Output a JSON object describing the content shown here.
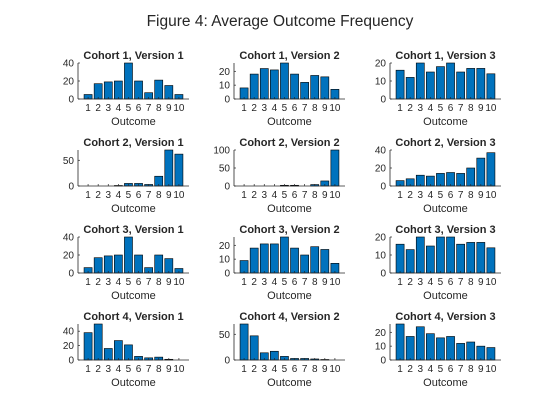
{
  "figure_title": "Figure 4: Average Outcome Frequency",
  "colors": {
    "bar_fill": "#0072BD",
    "bar_edge": "#000000",
    "axis": "#262626",
    "background": "#ffffff"
  },
  "chart_data": [
    {
      "type": "bar",
      "title": "Cohort 1, Version 1",
      "xlabel": "Outcome",
      "ylabel": "",
      "categories": [
        "1",
        "2",
        "3",
        "4",
        "5",
        "6",
        "7",
        "8",
        "9",
        "10"
      ],
      "values": [
        5,
        17,
        19,
        20,
        40,
        20,
        7,
        21,
        15,
        5
      ],
      "ylim": [
        0,
        40
      ],
      "yticks": [
        0,
        20,
        40
      ]
    },
    {
      "type": "bar",
      "title": "Cohort 1, Version 2",
      "xlabel": "Outcome",
      "ylabel": "",
      "categories": [
        "1",
        "2",
        "3",
        "4",
        "5",
        "6",
        "7",
        "8",
        "9",
        "10"
      ],
      "values": [
        8,
        18,
        22,
        21,
        26,
        18,
        12,
        17,
        16,
        7
      ],
      "ylim": [
        0,
        26
      ],
      "yticks": [
        0,
        10,
        20
      ]
    },
    {
      "type": "bar",
      "title": "Cohort 1, Version 3",
      "xlabel": "Outcome",
      "ylabel": "",
      "categories": [
        "1",
        "2",
        "3",
        "4",
        "5",
        "6",
        "7",
        "8",
        "9",
        "10"
      ],
      "values": [
        16,
        12,
        20,
        15,
        18,
        20,
        15,
        17,
        17,
        14
      ],
      "ylim": [
        0,
        20
      ],
      "yticks": [
        0,
        10,
        20
      ]
    },
    {
      "type": "bar",
      "title": "Cohort 2, Version 1",
      "xlabel": "Outcome",
      "ylabel": "",
      "categories": [
        "1",
        "2",
        "3",
        "4",
        "5",
        "6",
        "7",
        "8",
        "9",
        "10"
      ],
      "values": [
        0,
        0,
        0,
        1,
        5,
        5,
        3,
        19,
        70,
        62
      ],
      "ylim": [
        0,
        70
      ],
      "yticks": [
        0,
        50
      ]
    },
    {
      "type": "bar",
      "title": "Cohort 2, Version 2",
      "xlabel": "Outcome",
      "ylabel": "",
      "categories": [
        "1",
        "2",
        "3",
        "4",
        "5",
        "6",
        "7",
        "8",
        "9",
        "10"
      ],
      "values": [
        0,
        0,
        0,
        0,
        2,
        2,
        0,
        4,
        14,
        100
      ],
      "ylim": [
        0,
        100
      ],
      "yticks": [
        0,
        50,
        100
      ]
    },
    {
      "type": "bar",
      "title": "Cohort 2, Version 3",
      "xlabel": "Outcome",
      "ylabel": "",
      "categories": [
        "1",
        "2",
        "3",
        "4",
        "5",
        "6",
        "7",
        "8",
        "9",
        "10"
      ],
      "values": [
        6,
        8,
        12,
        11,
        14,
        15,
        14,
        20,
        31,
        37
      ],
      "ylim": [
        0,
        40
      ],
      "yticks": [
        0,
        20,
        40
      ]
    },
    {
      "type": "bar",
      "title": "Cohort 3, Version 1",
      "xlabel": "Outcome",
      "ylabel": "",
      "categories": [
        "1",
        "2",
        "3",
        "4",
        "5",
        "6",
        "7",
        "8",
        "9",
        "10"
      ],
      "values": [
        6,
        17,
        19,
        20,
        40,
        20,
        6,
        20,
        16,
        5
      ],
      "ylim": [
        0,
        40
      ],
      "yticks": [
        0,
        20,
        40
      ]
    },
    {
      "type": "bar",
      "title": "Cohort 3, Version 2",
      "xlabel": "Outcome",
      "ylabel": "",
      "categories": [
        "1",
        "2",
        "3",
        "4",
        "5",
        "6",
        "7",
        "8",
        "9",
        "10"
      ],
      "values": [
        9,
        18,
        21,
        21,
        26,
        18,
        13,
        19,
        17,
        7
      ],
      "ylim": [
        0,
        26
      ],
      "yticks": [
        0,
        10,
        20
      ]
    },
    {
      "type": "bar",
      "title": "Cohort 3, Version 3",
      "xlabel": "Outcome",
      "ylabel": "",
      "categories": [
        "1",
        "2",
        "3",
        "4",
        "5",
        "6",
        "7",
        "8",
        "9",
        "10"
      ],
      "values": [
        16,
        13,
        20,
        15,
        20,
        20,
        16,
        17,
        17,
        14
      ],
      "ylim": [
        0,
        20
      ],
      "yticks": [
        0,
        10,
        20
      ]
    },
    {
      "type": "bar",
      "title": "Cohort 4, Version 1",
      "xlabel": "Outcome",
      "ylabel": "",
      "categories": [
        "1",
        "2",
        "3",
        "4",
        "5",
        "6",
        "7",
        "8",
        "9",
        "10"
      ],
      "values": [
        38,
        50,
        16,
        27,
        21,
        5,
        3,
        4,
        1,
        0
      ],
      "ylim": [
        0,
        50
      ],
      "yticks": [
        0,
        20,
        40
      ]
    },
    {
      "type": "bar",
      "title": "Cohort 4, Version 2",
      "xlabel": "Outcome",
      "ylabel": "",
      "categories": [
        "1",
        "2",
        "3",
        "4",
        "5",
        "6",
        "7",
        "8",
        "9",
        "10"
      ],
      "values": [
        70,
        47,
        14,
        17,
        7,
        3,
        3,
        2,
        1,
        0
      ],
      "ylim": [
        0,
        70
      ],
      "yticks": [
        0,
        50
      ]
    },
    {
      "type": "bar",
      "title": "Cohort 4, Version 3",
      "xlabel": "Outcome",
      "ylabel": "",
      "categories": [
        "1",
        "2",
        "3",
        "4",
        "5",
        "6",
        "7",
        "8",
        "9",
        "10"
      ],
      "values": [
        26,
        17,
        24,
        19,
        16,
        17,
        12,
        13,
        10,
        9
      ],
      "ylim": [
        0,
        26
      ],
      "yticks": [
        0,
        10,
        20
      ]
    }
  ]
}
